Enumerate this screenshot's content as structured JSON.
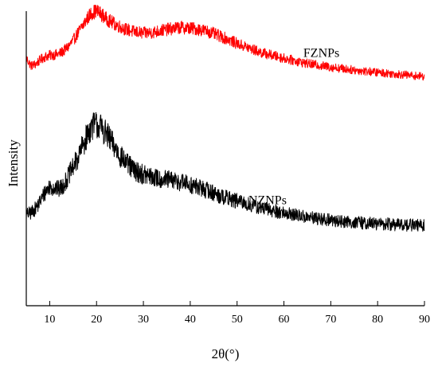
{
  "chart_data": {
    "type": "line",
    "title": "",
    "xlabel": "2θ(°)",
    "ylabel": "Intensity",
    "xlim": [
      5,
      90
    ],
    "xticks": [
      10,
      20,
      30,
      40,
      50,
      60,
      70,
      80,
      90
    ],
    "y_tick_labels": false,
    "grid": false,
    "legend": "none",
    "series": [
      {
        "name": "FZNPs",
        "color": "#ff0000",
        "label_at": [
          68,
          0.845
        ],
        "x": [
          5,
          6,
          7,
          8,
          9,
          10,
          11,
          12,
          13,
          14,
          15,
          16,
          17,
          18,
          19,
          20,
          21,
          22,
          24,
          26,
          28,
          30,
          32,
          34,
          36,
          38,
          40,
          42,
          44,
          46,
          48,
          50,
          52,
          55,
          60,
          65,
          70,
          75,
          80,
          85,
          90
        ],
        "y": [
          0.84,
          0.815,
          0.82,
          0.835,
          0.845,
          0.85,
          0.852,
          0.855,
          0.865,
          0.88,
          0.9,
          0.925,
          0.95,
          0.975,
          0.995,
          1.0,
          0.99,
          0.975,
          0.955,
          0.94,
          0.93,
          0.925,
          0.928,
          0.935,
          0.94,
          0.945,
          0.942,
          0.938,
          0.93,
          0.917,
          0.905,
          0.89,
          0.878,
          0.86,
          0.84,
          0.822,
          0.81,
          0.8,
          0.792,
          0.785,
          0.778
        ]
      },
      {
        "name": "NZNPs",
        "color": "#000000",
        "label_at": [
          56.5,
          0.345
        ],
        "x": [
          5,
          6,
          7,
          8,
          9,
          10,
          11,
          12,
          13,
          14,
          15,
          16,
          17,
          18,
          19,
          20,
          21,
          22,
          23,
          24,
          25,
          26,
          27,
          28,
          30,
          32,
          34,
          36,
          38,
          40,
          42,
          44,
          46,
          48,
          50,
          52,
          55,
          60,
          65,
          70,
          75,
          80,
          85,
          90
        ],
        "y": [
          0.31,
          0.315,
          0.33,
          0.355,
          0.385,
          0.405,
          0.4,
          0.395,
          0.41,
          0.44,
          0.47,
          0.5,
          0.54,
          0.58,
          0.61,
          0.615,
          0.605,
          0.585,
          0.56,
          0.535,
          0.51,
          0.49,
          0.475,
          0.46,
          0.445,
          0.435,
          0.43,
          0.425,
          0.42,
          0.41,
          0.4,
          0.39,
          0.375,
          0.365,
          0.355,
          0.345,
          0.332,
          0.315,
          0.3,
          0.29,
          0.283,
          0.278,
          0.275,
          0.272
        ]
      }
    ]
  }
}
